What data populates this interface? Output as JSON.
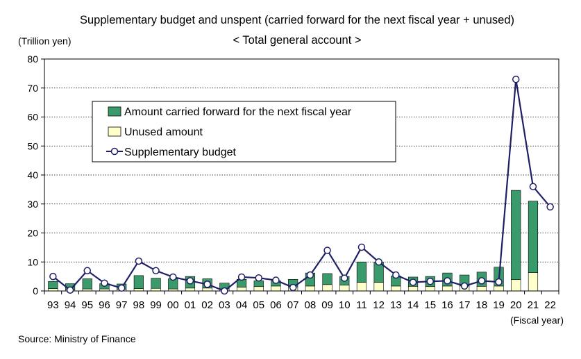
{
  "source": "Source: Ministry of Finance",
  "chart_data": {
    "type": "bar",
    "title": "Supplementary budget and unspent (carried forward for the next fiscal year + unused)",
    "subtitle": "< Total general account >",
    "ylabel": "(Trillion yen)",
    "xlabel": "(Fiscal year)",
    "ylim": [
      0,
      80
    ],
    "yticks": [
      0,
      10,
      20,
      30,
      40,
      50,
      60,
      70,
      80
    ],
    "grid": true,
    "legend_position": "upper-left",
    "categories": [
      "93",
      "94",
      "95",
      "96",
      "97",
      "98",
      "99",
      "00",
      "01",
      "02",
      "03",
      "04",
      "05",
      "06",
      "07",
      "08",
      "09",
      "10",
      "11",
      "12",
      "13",
      "14",
      "15",
      "16",
      "17",
      "18",
      "19",
      "20",
      "21",
      "22"
    ],
    "series": [
      {
        "name": "Amount carried forward for the next fiscal year",
        "kind": "stacked-bar",
        "color": "#3a9a6b",
        "values": [
          2.5,
          2.0,
          3.5,
          1.8,
          1.8,
          4.5,
          3.5,
          3.5,
          4.0,
          3.2,
          2.0,
          2.7,
          2.0,
          1.8,
          2.6,
          4.5,
          3.8,
          3.0,
          7.0,
          7.0,
          3.5,
          3.2,
          3.5,
          4.5,
          3.8,
          4.9,
          6.5,
          30.8,
          24.7,
          null
        ]
      },
      {
        "name": "Unused amount",
        "kind": "stacked-bar",
        "color": "#ffffcc",
        "values": [
          0.8,
          0.5,
          0.7,
          0.7,
          0.6,
          0.8,
          0.9,
          0.7,
          1.0,
          1.0,
          0.7,
          1.3,
          1.5,
          1.7,
          1.4,
          1.7,
          2.2,
          2.0,
          3.0,
          3.0,
          1.7,
          1.6,
          1.5,
          1.7,
          1.7,
          1.6,
          1.7,
          3.9,
          6.3,
          null
        ]
      },
      {
        "name": "Supplementary budget",
        "kind": "line",
        "color": "#1f1f66",
        "values": [
          5.0,
          0.3,
          7.0,
          2.7,
          1.0,
          10.3,
          7.0,
          4.8,
          3.5,
          2.3,
          0.0,
          4.8,
          4.5,
          3.7,
          1.2,
          5.5,
          14.0,
          4.4,
          15.1,
          10.0,
          5.5,
          3.0,
          3.3,
          3.5,
          1.7,
          3.5,
          3.1,
          73.0,
          36.0,
          29.0
        ]
      }
    ]
  }
}
